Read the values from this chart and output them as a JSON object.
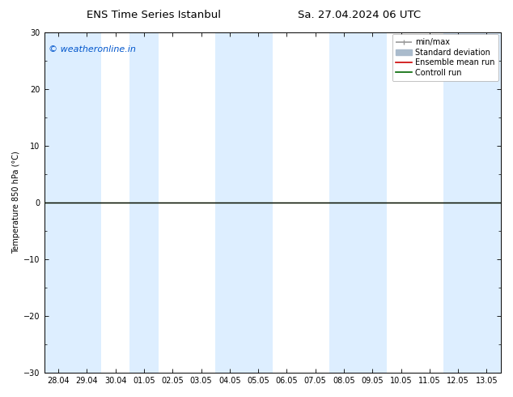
{
  "title_left": "ENS Time Series Istanbul",
  "title_right": "Sa. 27.04.2024 06 UTC",
  "ylabel": "Temperature 850 hPa (°C)",
  "watermark": "© weatheronline.in",
  "watermark_color": "#0055cc",
  "ylim": [
    -30,
    30
  ],
  "yticks": [
    -30,
    -20,
    -10,
    0,
    10,
    20,
    30
  ],
  "xlabels": [
    "28.04",
    "29.04",
    "30.04",
    "01.05",
    "02.05",
    "03.05",
    "04.05",
    "05.05",
    "06.05",
    "07.05",
    "08.05",
    "09.05",
    "10.05",
    "11.05",
    "12.05",
    "13.05"
  ],
  "background_color": "#ffffff",
  "plot_bg_color": "#ffffff",
  "shaded_columns_color": "#ddeeff",
  "shaded_columns": [
    0,
    1,
    3,
    6,
    7,
    10,
    11,
    14,
    15
  ],
  "zero_line_color": "#000000",
  "control_run_color": "#006600",
  "ensemble_mean_color": "#cc0000",
  "minmax_color": "#999999",
  "stddev_color": "#aabbcc",
  "legend_entries": [
    "min/max",
    "Standard deviation",
    "Ensemble mean run",
    "Controll run"
  ],
  "font_size_title": 9.5,
  "font_size_axis": 7,
  "font_size_legend": 7,
  "font_size_watermark": 8
}
